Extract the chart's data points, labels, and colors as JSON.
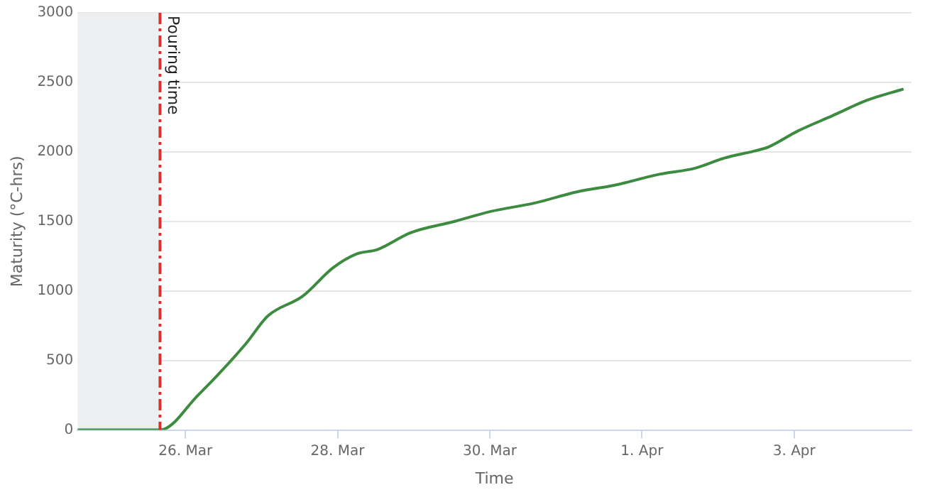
{
  "chart_data": {
    "type": "line",
    "xlabel": "Time",
    "ylabel": "Maturity (°C-hrs)",
    "x": [
      "--03-24T14:00",
      "--03-25T16:00",
      "--03-26T04:00",
      "--03-26T19:00",
      "--03-27T02:00",
      "--03-27T13:00",
      "--03-27T22:30",
      "--03-28T06:00",
      "--03-28T12:30",
      "--03-28T23:00",
      "--03-29T13:00",
      "--03-30T00:00",
      "--03-30T14:00",
      "--03-31T03:30",
      "--03-31T16:00",
      "--04-01T04:30",
      "--04-01T17:00",
      "--04-02T02:00",
      "--04-02T11:30",
      "--04-02T16:00",
      "--04-03T01:00",
      "--04-03T12:00",
      "--04-03T23:00",
      "--04-04T10:30"
    ],
    "series": [
      {
        "color": "#3d8b40",
        "values": [
          0,
          0,
          250,
          618,
          820,
          962,
          1165,
          1266,
          1297,
          1418,
          1500,
          1570,
          1631,
          1712,
          1763,
          1834,
          1884,
          1955,
          2006,
          2036,
          2148,
          2259,
          2371,
          2452
        ]
      }
    ],
    "xlim": [
      "--03-24T14:00",
      "--04-04T13:00"
    ],
    "xticks": [
      {
        "value": "--03-26",
        "label": "26. Mar"
      },
      {
        "value": "--03-28",
        "label": "28. Mar"
      },
      {
        "value": "--03-30",
        "label": "30. Mar"
      },
      {
        "value": "--04-01",
        "label": "1. Apr"
      },
      {
        "value": "--04-03",
        "label": "3. Apr"
      }
    ],
    "ylim": [
      0,
      3000
    ],
    "yticks": [
      0,
      500,
      1000,
      1500,
      2000,
      2500,
      3000
    ],
    "ref_lines": [
      {
        "axis": "x",
        "value": "--03-25T16:00",
        "label": "Pouring time",
        "color": "#d9302c",
        "line_style": "dashed"
      }
    ],
    "bands": [
      {
        "axis": "x",
        "from": "--03-24T14:00",
        "to": "--03-25T16:00",
        "color": "#edeef0"
      }
    ],
    "grid": "y",
    "legend": false,
    "marker": "none",
    "line_style": "solid"
  }
}
